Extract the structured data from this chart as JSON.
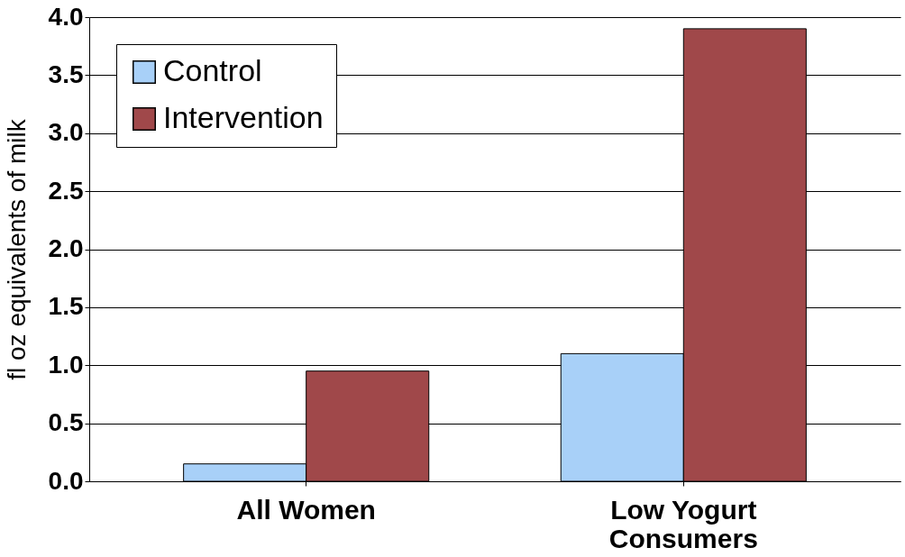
{
  "chart_data": {
    "type": "bar",
    "ylabel": "fl oz equivalents of milk",
    "categories": [
      "All Women",
      "Low Yogurt Consumers"
    ],
    "series": [
      {
        "name": "Control",
        "color": "#a8d0f8",
        "values": [
          0.15,
          1.1
        ]
      },
      {
        "name": "Intervention",
        "color": "#a0484a",
        "values": [
          0.95,
          3.9
        ]
      }
    ],
    "ylim": [
      0,
      4
    ],
    "yticks": [
      {
        "value": 0,
        "label": "0.0"
      },
      0.5,
      {
        "value": 1,
        "label": "1.0"
      },
      1.5,
      {
        "value": 2,
        "label": "2.0"
      },
      2.5,
      {
        "value": 3,
        "label": "3.0"
      },
      3.5,
      {
        "value": 4,
        "label": "4.0"
      }
    ],
    "grid": "y",
    "legend": "top left"
  }
}
